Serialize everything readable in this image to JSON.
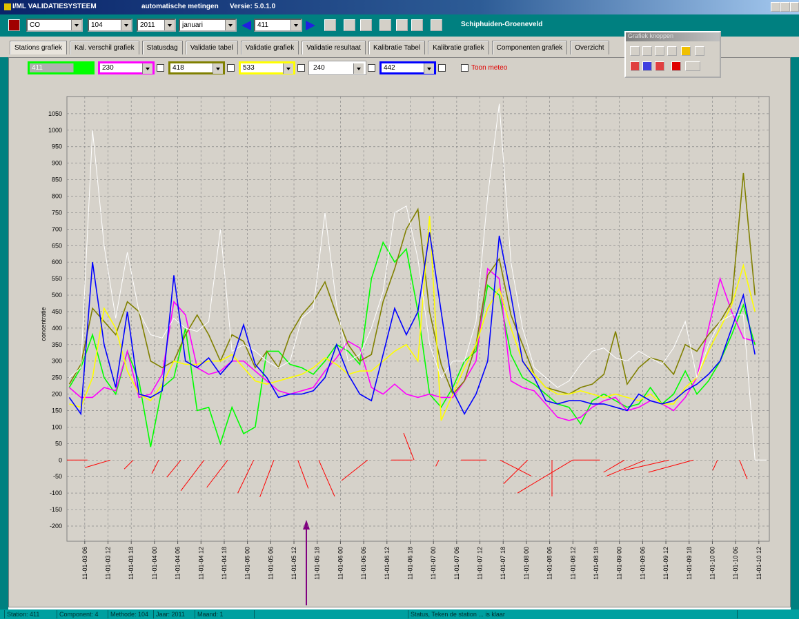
{
  "window": {
    "title": "I/ML VALIDATIESYSTEEM",
    "subtitle": "automatische metingen",
    "version": "Versie: 5.0.1.0"
  },
  "toolbar": {
    "component": "CO",
    "method": "104",
    "year": "2011",
    "month": "januari",
    "station": "411",
    "location": "Schiphuiden-Groeneveld"
  },
  "tabs": [
    "Stations grafiek",
    "Kal. verschil grafiek",
    "Statusdag",
    "Validatie tabel",
    "Validatie grafiek",
    "Validatie resultaat",
    "Kalibratie Tabel",
    "Kalibratie grafiek",
    "Componenten grafiek",
    "Overzicht"
  ],
  "station_selector": {
    "checkbox_label": "Toon meteo"
  },
  "toolbox": {
    "title": "Grafiek knoppen"
  },
  "status_bar": [
    "Station: 411",
    "Component: 4",
    "Methode: 104",
    "Jaar: 2011",
    "Maand: 1",
    "Status, Teken de station ... is klaar"
  ],
  "chart_data": {
    "type": "line",
    "y_label": "concentratie",
    "grid": true,
    "xlim": [
      1.4,
      182.7
    ],
    "ylim": [
      -246,
      1102
    ],
    "yticks": [
      -200,
      -150,
      -100,
      -50,
      0,
      50,
      100,
      150,
      200,
      250,
      300,
      350,
      400,
      450,
      500,
      550,
      600,
      650,
      700,
      750,
      800,
      850,
      900,
      950,
      1000,
      1050
    ],
    "xticks": [
      {
        "value": 6,
        "label": "11-01-03 06"
      },
      {
        "value": 12,
        "label": "11-01-03 12"
      },
      {
        "value": 18,
        "label": "11-01-03 18"
      },
      {
        "value": 24,
        "label": "11-01-04 00"
      },
      {
        "value": 30,
        "label": "11-01-04 06"
      },
      {
        "value": 36,
        "label": "11-01-04 12"
      },
      {
        "value": 42,
        "label": "11-01-04 18"
      },
      {
        "value": 48,
        "label": "11-01-05 00"
      },
      {
        "value": 54,
        "label": "11-01-05 06"
      },
      {
        "value": 60,
        "label": "11-01-05 12"
      },
      {
        "value": 66,
        "label": "11-01-05 18"
      },
      {
        "value": 72,
        "label": "11-01-06 00"
      },
      {
        "value": 78,
        "label": "11-01-06 06"
      },
      {
        "value": 84,
        "label": "11-01-06 12"
      },
      {
        "value": 90,
        "label": "11-01-06 18"
      },
      {
        "value": 96,
        "label": "11-01-07 00"
      },
      {
        "value": 102,
        "label": "11-01-07 06"
      },
      {
        "value": 108,
        "label": "11-01-07 12"
      },
      {
        "value": 114,
        "label": "11-01-07 18"
      },
      {
        "value": 120,
        "label": "11-01-08 00"
      },
      {
        "value": 126,
        "label": "11-01-08 06"
      },
      {
        "value": 132,
        "label": "11-01-08 12"
      },
      {
        "value": 138,
        "label": "11-01-08 18"
      },
      {
        "value": 144,
        "label": "11-01-09 00"
      },
      {
        "value": 150,
        "label": "11-01-09 06"
      },
      {
        "value": 156,
        "label": "11-01-09 12"
      },
      {
        "value": 162,
        "label": "11-01-09 18"
      },
      {
        "value": 168,
        "label": "11-01-10 00"
      },
      {
        "value": 174,
        "label": "11-01-10 06"
      },
      {
        "value": 180,
        "label": "11-01-10 12"
      }
    ],
    "x": [
      2,
      5,
      8,
      11,
      14,
      17,
      20,
      23,
      26,
      29,
      32,
      35,
      38,
      41,
      44,
      47,
      50,
      53,
      56,
      59,
      62,
      65,
      68,
      71,
      74,
      77,
      80,
      83,
      86,
      89,
      92,
      95,
      98,
      101,
      104,
      107,
      110,
      113,
      116,
      119,
      122,
      125,
      128,
      131,
      134,
      137,
      140,
      143,
      146,
      149,
      152,
      155,
      158,
      161,
      164,
      167,
      170,
      173,
      176,
      179,
      182
    ],
    "series": [
      {
        "name": "411",
        "color": "#00ff00",
        "values": [
          220,
          280,
          380,
          250,
          200,
          330,
          240,
          40,
          220,
          250,
          400,
          150,
          160,
          50,
          160,
          80,
          100,
          330,
          330,
          290,
          280,
          260,
          300,
          350,
          330,
          290,
          550,
          660,
          600,
          640,
          450,
          200,
          160,
          220,
          300,
          330,
          530,
          500,
          320,
          250,
          230,
          200,
          170,
          160,
          110,
          180,
          200,
          180,
          160,
          170,
          220,
          170,
          200,
          270,
          200,
          240,
          300,
          380,
          470,
          350,
          null
        ]
      },
      {
        "name": "230",
        "color": "#ff00ff",
        "values": [
          220,
          190,
          190,
          220,
          210,
          330,
          190,
          200,
          260,
          480,
          440,
          280,
          260,
          270,
          300,
          300,
          270,
          240,
          210,
          200,
          210,
          220,
          270,
          310,
          360,
          340,
          220,
          200,
          230,
          200,
          190,
          200,
          190,
          190,
          240,
          300,
          580,
          550,
          240,
          220,
          210,
          170,
          130,
          120,
          130,
          160,
          180,
          190,
          150,
          160,
          180,
          170,
          150,
          190,
          250,
          400,
          550,
          450,
          370,
          360,
          null
        ]
      },
      {
        "name": "418",
        "color": "#808000",
        "values": [
          230,
          290,
          460,
          420,
          380,
          480,
          450,
          300,
          280,
          300,
          380,
          440,
          380,
          300,
          380,
          360,
          280,
          330,
          280,
          380,
          440,
          480,
          540,
          440,
          350,
          300,
          320,
          480,
          580,
          700,
          760,
          450,
          290,
          200,
          240,
          350,
          560,
          610,
          440,
          350,
          260,
          220,
          210,
          200,
          220,
          230,
          260,
          390,
          230,
          280,
          310,
          300,
          260,
          350,
          330,
          380,
          420,
          480,
          870,
          500,
          null
        ]
      },
      {
        "name": "533",
        "color": "#ffff00",
        "values": [
          170,
          160,
          250,
          460,
          400,
          270,
          200,
          180,
          230,
          300,
          290,
          290,
          300,
          300,
          320,
          280,
          240,
          230,
          240,
          250,
          260,
          280,
          310,
          290,
          260,
          270,
          270,
          300,
          330,
          350,
          300,
          740,
          120,
          200,
          280,
          350,
          460,
          520,
          400,
          300,
          260,
          220,
          200,
          200,
          210,
          200,
          190,
          200,
          190,
          180,
          200,
          170,
          170,
          220,
          250,
          330,
          400,
          470,
          590,
          450,
          null
        ]
      },
      {
        "name": "240",
        "color": "#ffffff",
        "values": [
          250,
          280,
          1000,
          650,
          430,
          630,
          450,
          380,
          370,
          430,
          400,
          390,
          420,
          700,
          330,
          350,
          330,
          300,
          280,
          300,
          430,
          460,
          750,
          470,
          300,
          320,
          400,
          510,
          750,
          770,
          610,
          350,
          250,
          300,
          300,
          420,
          800,
          1080,
          600,
          400,
          280,
          250,
          220,
          240,
          290,
          330,
          340,
          310,
          300,
          330,
          310,
          290,
          340,
          420,
          250,
          350,
          420,
          440,
          440,
          0,
          0
        ]
      },
      {
        "name": "442",
        "color": "#0000ff",
        "values": [
          190,
          140,
          600,
          350,
          220,
          450,
          200,
          190,
          210,
          560,
          300,
          280,
          310,
          260,
          300,
          410,
          290,
          250,
          190,
          200,
          200,
          210,
          250,
          350,
          260,
          200,
          180,
          320,
          460,
          380,
          450,
          690,
          450,
          210,
          140,
          200,
          300,
          680,
          500,
          300,
          250,
          180,
          170,
          180,
          180,
          170,
          170,
          160,
          150,
          200,
          180,
          170,
          180,
          210,
          230,
          260,
          300,
          400,
          500,
          320,
          null
        ]
      }
    ],
    "wind": {
      "color": "#ff0000",
      "x": [
        1.4,
        6,
        16.2,
        23.3,
        27.2,
        30.8,
        37.5,
        45.5,
        51.2,
        63.7,
        70.5,
        72.3,
        90.6,
        91.0,
        96.6,
        109.7,
        114.1,
        121.2,
        117.7,
        126.6,
        131.9,
        139.9,
        140.8,
        145.3,
        151.5,
        168.1,
        177.0
      ],
      "y": [
        0,
        -23,
        -27,
        -41,
        -52,
        -93,
        -83,
        -100,
        -112,
        -86,
        -110,
        -62,
        0,
        0,
        -19,
        0,
        -72,
        -48,
        -100,
        -110,
        0,
        -37,
        -48,
        -31,
        -37,
        -31,
        -58
      ],
      "x_end": [
        6.7,
        12.6,
        18.5,
        25.1,
        30.8,
        36.8,
        42.9,
        49.6,
        54.8,
        61.0,
        66.4,
        79.0,
        85.1,
        88.3,
        97.4,
        103.1,
        120.3,
        113.2,
        131.9,
        126.6,
        139.0,
        145.3,
        150.6,
        156.8,
        163.1,
        169.3,
        175.0
      ],
      "y_end": [
        0,
        0,
        0,
        0,
        0,
        0,
        0,
        0,
        0,
        0,
        0,
        0,
        0,
        82,
        0,
        0,
        0,
        0,
        0,
        0,
        0,
        0,
        0,
        0,
        0,
        0,
        0
      ]
    }
  }
}
